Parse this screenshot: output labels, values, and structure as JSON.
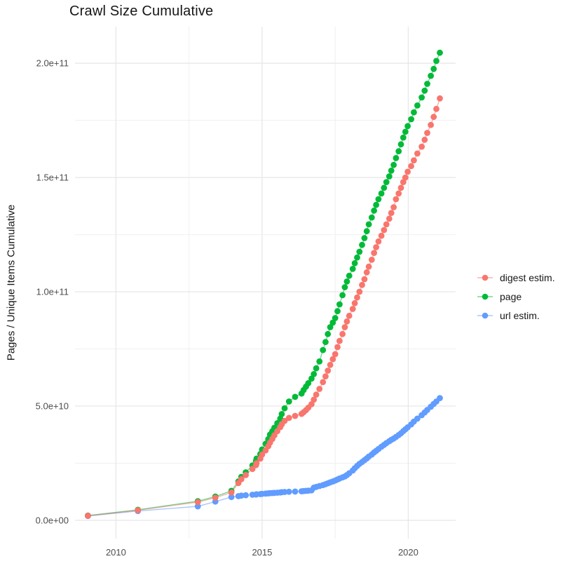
{
  "chart_data": {
    "type": "line",
    "title": "Crawl Size Cumulative",
    "xlabel": "",
    "ylabel": "Pages / Unique Items Cumulative",
    "grid": true,
    "legend_position": "right",
    "y_unit": "count (values stored in billions, 1e9)",
    "x_axis": {
      "tick_values": [
        2010,
        2015,
        2020
      ],
      "tick_labels": [
        "2010",
        "2015",
        "2020"
      ],
      "minor_ticks": [
        2012.5,
        2017.5
      ],
      "lim": [
        2008.6,
        2021.62
      ]
    },
    "y_axis": {
      "tick_values_billions": [
        0,
        50,
        100,
        150,
        200
      ],
      "tick_labels": [
        "0.0e+00",
        "5.0e+10",
        "1.0e+11",
        "1.5e+11",
        "2.0e+11"
      ],
      "minor_ticks_billions": [
        25,
        75,
        125,
        175
      ],
      "lim_billions": [
        -8,
        216
      ]
    },
    "colors": {
      "grid_major": "#e6e6e6",
      "grid_minor": "#f0f0f0",
      "tick_label": "#4d4d4d",
      "title_text": "#161616"
    },
    "draw_order": [
      "url estim.",
      "page",
      "digest estim."
    ],
    "series": [
      {
        "name": "digest estim.",
        "color": "#F8766D",
        "points": [
          [
            2009.04,
            2.0
          ],
          [
            2010.75,
            4.4
          ],
          [
            2012.8,
            8.0
          ],
          [
            2013.4,
            9.9
          ],
          [
            2013.95,
            12.2
          ],
          [
            2014.19,
            16.3
          ],
          [
            2014.29,
            18.0
          ],
          [
            2014.44,
            19.8
          ],
          [
            2014.67,
            22.5
          ],
          [
            2014.79,
            24.2
          ],
          [
            2014.81,
            25.0
          ],
          [
            2014.94,
            27.0
          ],
          [
            2015.0,
            28.8
          ],
          [
            2015.12,
            30.6
          ],
          [
            2015.21,
            32.4
          ],
          [
            2015.27,
            34.0
          ],
          [
            2015.35,
            35.6
          ],
          [
            2015.42,
            37.2
          ],
          [
            2015.52,
            39.0
          ],
          [
            2015.62,
            40.8
          ],
          [
            2015.67,
            42.0
          ],
          [
            2015.77,
            43.5
          ],
          [
            2015.92,
            44.8
          ],
          [
            2016.13,
            45.7
          ],
          [
            2016.35,
            46.6
          ],
          [
            2016.42,
            47.3
          ],
          [
            2016.5,
            48.2
          ],
          [
            2016.58,
            49.3
          ],
          [
            2016.69,
            50.8
          ],
          [
            2016.77,
            52.8
          ],
          [
            2016.85,
            55.0
          ],
          [
            2016.96,
            57.5
          ],
          [
            2017.08,
            60.5
          ],
          [
            2017.17,
            63.0
          ],
          [
            2017.25,
            65.5
          ],
          [
            2017.33,
            68.0
          ],
          [
            2017.42,
            70.5
          ],
          [
            2017.5,
            72.7
          ],
          [
            2017.58,
            75.8
          ],
          [
            2017.65,
            78.5
          ],
          [
            2017.75,
            81.5
          ],
          [
            2017.83,
            84.5
          ],
          [
            2017.9,
            87.0
          ],
          [
            2017.98,
            89.5
          ],
          [
            2018.1,
            92.5
          ],
          [
            2018.17,
            95.0
          ],
          [
            2018.25,
            97.5
          ],
          [
            2018.33,
            100.0
          ],
          [
            2018.42,
            103.0
          ],
          [
            2018.5,
            105.5
          ],
          [
            2018.58,
            108.5
          ],
          [
            2018.65,
            111.0
          ],
          [
            2018.75,
            114.0
          ],
          [
            2018.83,
            117.0
          ],
          [
            2018.9,
            119.5
          ],
          [
            2018.98,
            122.0
          ],
          [
            2019.08,
            124.5
          ],
          [
            2019.17,
            127.0
          ],
          [
            2019.25,
            129.5
          ],
          [
            2019.35,
            132.0
          ],
          [
            2019.42,
            134.5
          ],
          [
            2019.5,
            137.0
          ],
          [
            2019.58,
            140.5
          ],
          [
            2019.67,
            143.0
          ],
          [
            2019.75,
            145.5
          ],
          [
            2019.83,
            148.0
          ],
          [
            2019.9,
            150.0
          ],
          [
            2019.98,
            152.5
          ],
          [
            2020.1,
            155.0
          ],
          [
            2020.19,
            157.5
          ],
          [
            2020.31,
            160.5
          ],
          [
            2020.46,
            163.5
          ],
          [
            2020.56,
            166.5
          ],
          [
            2020.65,
            169.5
          ],
          [
            2020.77,
            173.0
          ],
          [
            2020.87,
            176.5
          ],
          [
            2020.96,
            180.0
          ],
          [
            2021.08,
            184.6
          ]
        ]
      },
      {
        "name": "page",
        "color": "#00BA38",
        "points": [
          [
            2009.04,
            2.1
          ],
          [
            2010.75,
            4.6
          ],
          [
            2012.8,
            8.4
          ],
          [
            2013.4,
            10.4
          ],
          [
            2013.95,
            12.9
          ],
          [
            2014.19,
            17.0
          ],
          [
            2014.29,
            19.0
          ],
          [
            2014.44,
            21.0
          ],
          [
            2014.67,
            24.0
          ],
          [
            2014.79,
            26.0
          ],
          [
            2014.81,
            27.0
          ],
          [
            2014.94,
            29.0
          ],
          [
            2015.0,
            31.0
          ],
          [
            2015.12,
            33.5
          ],
          [
            2015.21,
            35.5
          ],
          [
            2015.27,
            37.5
          ],
          [
            2015.35,
            39.0
          ],
          [
            2015.42,
            40.5
          ],
          [
            2015.52,
            42.5
          ],
          [
            2015.62,
            44.5
          ],
          [
            2015.67,
            46.5
          ],
          [
            2015.77,
            49.0
          ],
          [
            2015.92,
            52.0
          ],
          [
            2016.13,
            54.0
          ],
          [
            2016.35,
            55.5
          ],
          [
            2016.42,
            57.0
          ],
          [
            2016.5,
            58.5
          ],
          [
            2016.58,
            60.0
          ],
          [
            2016.69,
            62.0
          ],
          [
            2016.77,
            64.0
          ],
          [
            2016.85,
            66.5
          ],
          [
            2016.96,
            69.5
          ],
          [
            2017.08,
            74.5
          ],
          [
            2017.17,
            78.0
          ],
          [
            2017.25,
            81.5
          ],
          [
            2017.33,
            84.5
          ],
          [
            2017.42,
            86.5
          ],
          [
            2017.5,
            88.5
          ],
          [
            2017.58,
            91.5
          ],
          [
            2017.65,
            94.5
          ],
          [
            2017.75,
            98.5
          ],
          [
            2017.83,
            102.0
          ],
          [
            2017.9,
            104.5
          ],
          [
            2017.98,
            107.0
          ],
          [
            2018.1,
            110.0
          ],
          [
            2018.17,
            112.5
          ],
          [
            2018.25,
            115.0
          ],
          [
            2018.33,
            117.5
          ],
          [
            2018.42,
            120.5
          ],
          [
            2018.5,
            123.5
          ],
          [
            2018.58,
            126.5
          ],
          [
            2018.65,
            129.5
          ],
          [
            2018.75,
            132.5
          ],
          [
            2018.83,
            135.5
          ],
          [
            2018.9,
            138.0
          ],
          [
            2018.98,
            140.5
          ],
          [
            2019.08,
            143.0
          ],
          [
            2019.17,
            145.5
          ],
          [
            2019.25,
            148.0
          ],
          [
            2019.35,
            150.5
          ],
          [
            2019.42,
            153.0
          ],
          [
            2019.5,
            155.5
          ],
          [
            2019.58,
            158.5
          ],
          [
            2019.67,
            161.5
          ],
          [
            2019.75,
            164.5
          ],
          [
            2019.83,
            167.5
          ],
          [
            2019.9,
            170.0
          ],
          [
            2019.98,
            172.5
          ],
          [
            2020.1,
            175.5
          ],
          [
            2020.19,
            178.5
          ],
          [
            2020.31,
            181.5
          ],
          [
            2020.46,
            185.0
          ],
          [
            2020.56,
            188.0
          ],
          [
            2020.65,
            191.0
          ],
          [
            2020.77,
            194.5
          ],
          [
            2020.87,
            197.5
          ],
          [
            2020.96,
            201.0
          ],
          [
            2021.08,
            204.6
          ]
        ]
      },
      {
        "name": "url estim.",
        "color": "#619CFF",
        "points": [
          [
            2009.04,
            1.9
          ],
          [
            2010.75,
            4.1
          ],
          [
            2012.8,
            6.1
          ],
          [
            2013.4,
            8.2
          ],
          [
            2013.95,
            10.2
          ],
          [
            2014.19,
            10.6
          ],
          [
            2014.29,
            10.8
          ],
          [
            2014.44,
            11.0
          ],
          [
            2014.67,
            11.2
          ],
          [
            2014.79,
            11.3
          ],
          [
            2014.81,
            11.4
          ],
          [
            2014.94,
            11.5
          ],
          [
            2015.0,
            11.6
          ],
          [
            2015.12,
            11.7
          ],
          [
            2015.21,
            11.8
          ],
          [
            2015.27,
            11.9
          ],
          [
            2015.35,
            11.95
          ],
          [
            2015.42,
            12.0
          ],
          [
            2015.52,
            12.1
          ],
          [
            2015.62,
            12.2
          ],
          [
            2015.67,
            12.3
          ],
          [
            2015.77,
            12.4
          ],
          [
            2015.92,
            12.5
          ],
          [
            2016.13,
            12.6
          ],
          [
            2016.35,
            12.7
          ],
          [
            2016.42,
            12.8
          ],
          [
            2016.5,
            12.9
          ],
          [
            2016.58,
            13.0
          ],
          [
            2016.69,
            13.1
          ],
          [
            2016.77,
            14.3
          ],
          [
            2016.85,
            14.6
          ],
          [
            2016.96,
            15.0
          ],
          [
            2017.08,
            15.4
          ],
          [
            2017.17,
            15.8
          ],
          [
            2017.25,
            16.2
          ],
          [
            2017.33,
            16.6
          ],
          [
            2017.42,
            17.0
          ],
          [
            2017.5,
            17.4
          ],
          [
            2017.58,
            17.9
          ],
          [
            2017.65,
            18.3
          ],
          [
            2017.75,
            18.8
          ],
          [
            2017.83,
            19.2
          ],
          [
            2017.9,
            19.8
          ],
          [
            2017.98,
            20.6
          ],
          [
            2018.1,
            21.8
          ],
          [
            2018.17,
            22.8
          ],
          [
            2018.25,
            23.8
          ],
          [
            2018.33,
            24.7
          ],
          [
            2018.42,
            25.5
          ],
          [
            2018.5,
            26.3
          ],
          [
            2018.58,
            27.1
          ],
          [
            2018.65,
            27.9
          ],
          [
            2018.75,
            28.8
          ],
          [
            2018.83,
            29.7
          ],
          [
            2018.9,
            30.4
          ],
          [
            2018.98,
            31.2
          ],
          [
            2019.08,
            32.2
          ],
          [
            2019.17,
            33.0
          ],
          [
            2019.25,
            33.8
          ],
          [
            2019.35,
            34.6
          ],
          [
            2019.42,
            35.2
          ],
          [
            2019.5,
            35.8
          ],
          [
            2019.58,
            36.5
          ],
          [
            2019.67,
            37.3
          ],
          [
            2019.75,
            38.1
          ],
          [
            2019.83,
            39.0
          ],
          [
            2019.9,
            39.8
          ],
          [
            2019.98,
            40.7
          ],
          [
            2020.1,
            42.0
          ],
          [
            2020.19,
            43.2
          ],
          [
            2020.31,
            44.5
          ],
          [
            2020.46,
            46.0
          ],
          [
            2020.56,
            47.2
          ],
          [
            2020.65,
            48.3
          ],
          [
            2020.77,
            49.7
          ],
          [
            2020.87,
            50.9
          ],
          [
            2020.96,
            52.0
          ],
          [
            2021.08,
            53.5
          ]
        ]
      }
    ]
  }
}
